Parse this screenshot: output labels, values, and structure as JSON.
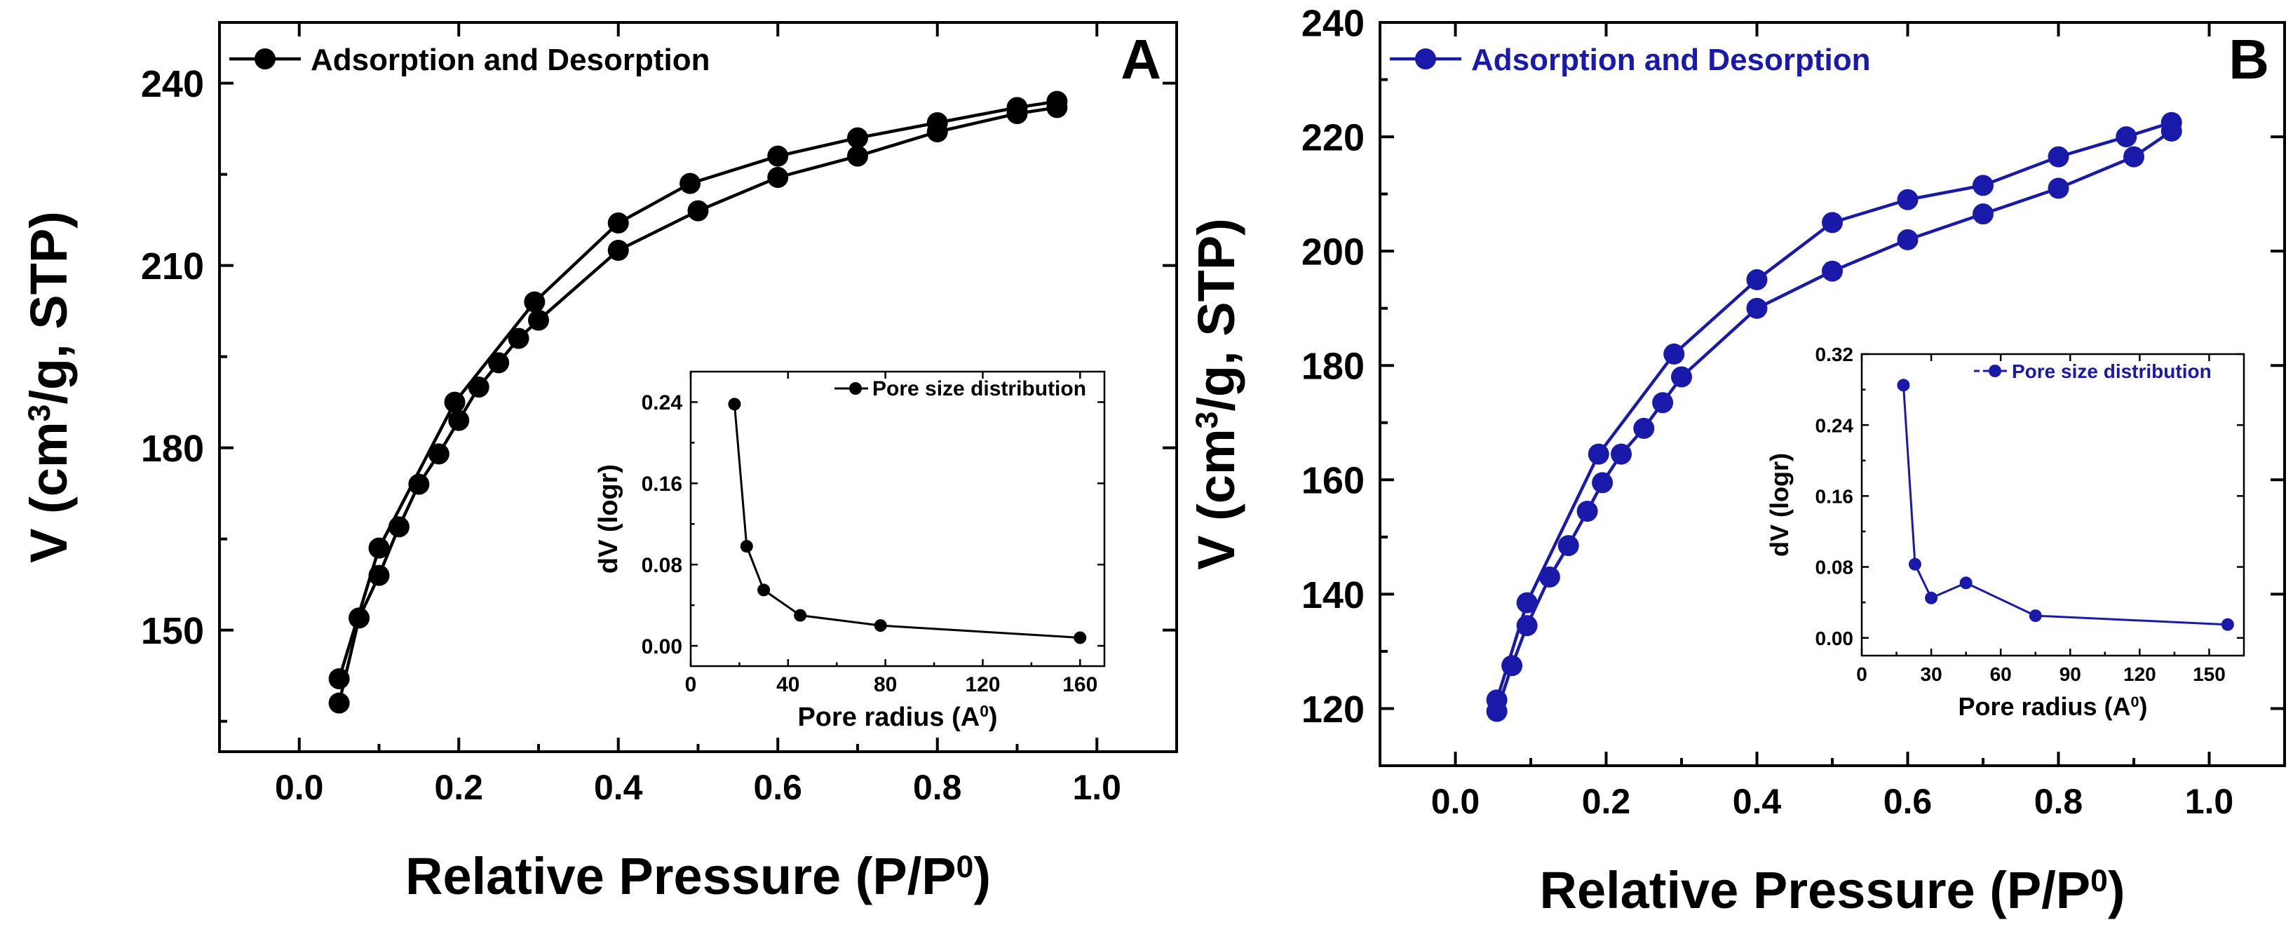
{
  "chart_data": [
    {
      "type": "line",
      "panel_label": "A",
      "color": "#000000",
      "xlabel_main": "Relative Pressure (P/P",
      "xlabel_sup": "0",
      "xlabel_end": ")",
      "ylabel_pre": "V (cm",
      "ylabel_sup": "3",
      "ylabel_post": "/g, STP)",
      "xlim": [
        -0.1,
        1.1
      ],
      "ylim": [
        130,
        250
      ],
      "xticks": [
        0.0,
        0.2,
        0.4,
        0.6,
        0.8,
        1.0
      ],
      "xtick_labels": [
        "0.0",
        "0.2",
        "0.4",
        "0.6",
        "0.8",
        "1.0"
      ],
      "yticks": [
        150,
        180,
        210,
        240
      ],
      "ytick_labels": [
        "150",
        "180",
        "210",
        "240"
      ],
      "legend": "Adsorption and Desorption",
      "series": [
        {
          "name": "Adsorption",
          "x": [
            0.05,
            0.075,
            0.1,
            0.125,
            0.15,
            0.175,
            0.2,
            0.225,
            0.25,
            0.275,
            0.3,
            0.4,
            0.5,
            0.6,
            0.7,
            0.8,
            0.9,
            0.95
          ],
          "y": [
            138,
            152,
            159,
            167,
            174,
            179,
            184.5,
            190,
            194,
            198,
            201,
            212.5,
            219,
            224.5,
            228,
            232,
            235,
            236
          ]
        },
        {
          "name": "Desorption",
          "x": [
            0.95,
            0.9,
            0.8,
            0.7,
            0.6,
            0.49,
            0.4,
            0.295,
            0.195,
            0.1,
            0.05
          ],
          "y": [
            237,
            236,
            233.5,
            231,
            228,
            223.5,
            217,
            204,
            187.5,
            163.5,
            142
          ]
        }
      ],
      "inset": {
        "legend": "Pore size distribution",
        "xlabel_main": "Pore radius (A",
        "xlabel_sup": "0",
        "xlabel_end": ")",
        "ylabel": "dV (logr)",
        "xlim": [
          0,
          170
        ],
        "ylim": [
          -0.02,
          0.27
        ],
        "xticks": [
          0,
          40,
          80,
          120,
          160
        ],
        "xtick_labels": [
          "0",
          "40",
          "80",
          "120",
          "160"
        ],
        "yticks": [
          0.0,
          0.08,
          0.16,
          0.24
        ],
        "ytick_labels": [
          "0.00",
          "0.08",
          "0.16",
          "0.24"
        ],
        "x": [
          18,
          23,
          30,
          45,
          78,
          160
        ],
        "y": [
          0.238,
          0.098,
          0.055,
          0.03,
          0.02,
          0.008
        ]
      }
    },
    {
      "type": "line",
      "panel_label": "B",
      "color": "#1a1aaa",
      "xlabel_main": "Relative Pressure (P/P",
      "xlabel_sup": "0",
      "xlabel_end": ")",
      "ylabel_pre": "V (cm",
      "ylabel_sup": "3",
      "ylabel_post": "/g, STP)",
      "xlim": [
        -0.1,
        1.1
      ],
      "ylim": [
        110,
        240
      ],
      "xticks": [
        0.0,
        0.2,
        0.4,
        0.6,
        0.8,
        1.0
      ],
      "xtick_labels": [
        "0.0",
        "0.2",
        "0.4",
        "0.6",
        "0.8",
        "1.0"
      ],
      "yticks": [
        120,
        140,
        160,
        180,
        200,
        220,
        240
      ],
      "ytick_labels": [
        "120",
        "140",
        "160",
        "180",
        "200",
        "220",
        "240"
      ],
      "legend": "Adsorption and Desorption",
      "series": [
        {
          "name": "Adsorption",
          "x": [
            0.055,
            0.075,
            0.095,
            0.125,
            0.15,
            0.175,
            0.195,
            0.22,
            0.25,
            0.275,
            0.3,
            0.4,
            0.5,
            0.6,
            0.7,
            0.8,
            0.9,
            0.95
          ],
          "y": [
            119.5,
            127.5,
            134.5,
            143,
            148.5,
            154.5,
            159.5,
            164.5,
            169,
            173.5,
            178,
            190,
            196.5,
            202,
            206.5,
            211,
            216.5,
            221
          ]
        },
        {
          "name": "Desorption",
          "x": [
            0.95,
            0.89,
            0.8,
            0.7,
            0.6,
            0.5,
            0.4,
            0.29,
            0.19,
            0.095,
            0.055
          ],
          "y": [
            222.5,
            220,
            216.5,
            211.5,
            209,
            205,
            195,
            182,
            164.5,
            138.5,
            121.5
          ]
        }
      ],
      "inset": {
        "legend": "Pore size distribution",
        "xlabel_main": "Pore radius (A",
        "xlabel_sup": "0",
        "xlabel_end": ")",
        "ylabel": "dV (logr)",
        "xlim": [
          0,
          165
        ],
        "ylim": [
          -0.02,
          0.32
        ],
        "xticks": [
          0,
          30,
          60,
          90,
          120,
          150
        ],
        "xtick_labels": [
          "0",
          "30",
          "60",
          "90",
          "120",
          "150"
        ],
        "yticks": [
          0.0,
          0.08,
          0.16,
          0.24,
          0.32
        ],
        "ytick_labels": [
          "0.00",
          "0.08",
          "0.16",
          "0.24",
          "0.32"
        ],
        "x": [
          18,
          23,
          30,
          45,
          75,
          158
        ],
        "y": [
          0.285,
          0.083,
          0.045,
          0.062,
          0.025,
          0.015
        ]
      }
    }
  ]
}
